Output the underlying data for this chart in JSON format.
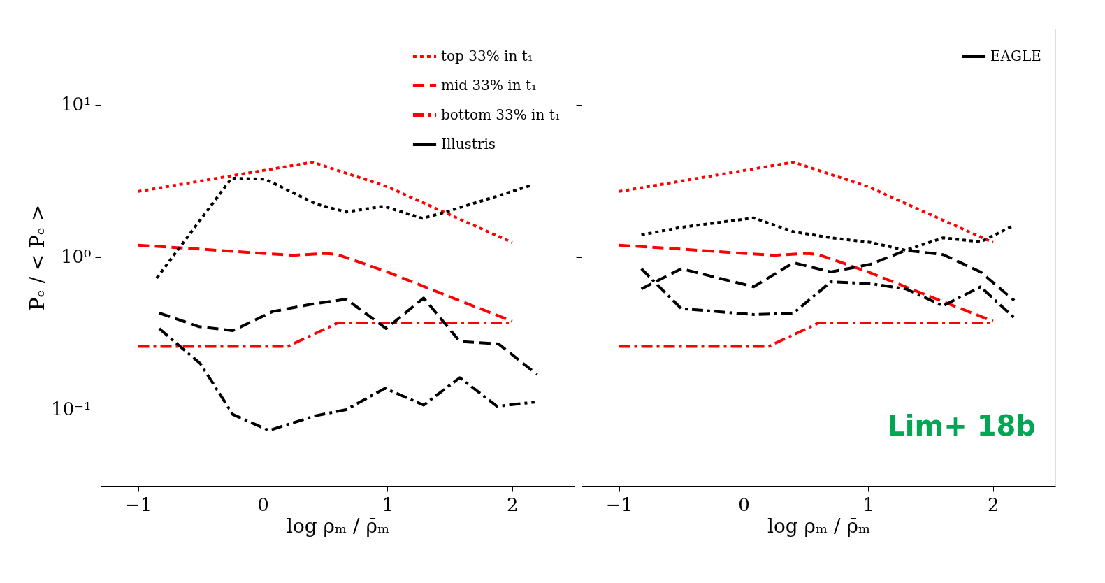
{
  "chart_data": [
    {
      "type": "line",
      "xlabel": "log ρₘ / ρ̄ₘ",
      "ylabel": "Pₑ / < Pₑ >",
      "log": "y",
      "grid": false,
      "legend": "top right",
      "xlim": [
        -1.3,
        2.5
      ],
      "ylim": [
        0.0316,
        31.6
      ],
      "xticks": [
        {
          "value": -1,
          "label": "−1"
        },
        0,
        1,
        2
      ],
      "yticks": [
        {
          "value": 0.1,
          "label": "10⁻¹"
        },
        {
          "value": 1,
          "label": "10⁰"
        },
        {
          "value": 10,
          "label": "10¹"
        }
      ],
      "series": [
        {
          "name": "top 33% in t₁",
          "color": "#ff0000",
          "line_style": "dotted",
          "x": [
            -1,
            0,
            0.4,
            1,
            1.5,
            2
          ],
          "values": [
            2.7,
            3.7,
            4.2,
            2.9,
            1.9,
            1.25
          ]
        },
        {
          "name": "mid 33% in t₁",
          "color": "#ff0000",
          "line_style": "dashed",
          "x": [
            -1,
            -0.5,
            0,
            0.25,
            0.5,
            0.6,
            1,
            1.5,
            2
          ],
          "values": [
            1.2,
            1.13,
            1.06,
            1.03,
            1.06,
            1.04,
            0.8,
            0.55,
            0.38
          ]
        },
        {
          "name": "bottom 33% in t₁",
          "color": "#ff0000",
          "line_style": "dashdot",
          "x": [
            -1,
            -0.5,
            0,
            0.2,
            0.4,
            0.6,
            1,
            2
          ],
          "values": [
            0.26,
            0.26,
            0.26,
            0.26,
            0.31,
            0.37,
            0.37,
            0.37
          ]
        },
        {
          "name": "Illustris",
          "color": "#000000",
          "line_style": "solid"
        },
        {
          "color": "#000000",
          "line_style": "dotted",
          "x": [
            -0.85,
            -0.25,
            0.02,
            0.43,
            0.67,
            0.97,
            1.28,
            1.47,
            2.16
          ],
          "values": [
            0.73,
            3.3,
            3.25,
            2.23,
            1.98,
            2.16,
            1.8,
            1.98,
            2.97
          ]
        },
        {
          "color": "#000000",
          "line_style": "dashed",
          "x": [
            -0.83,
            -0.51,
            -0.24,
            0.08,
            0.38,
            0.67,
            0.99,
            1.29,
            1.58,
            1.89,
            2.2
          ],
          "values": [
            0.43,
            0.35,
            0.33,
            0.44,
            0.49,
            0.53,
            0.34,
            0.54,
            0.28,
            0.27,
            0.17
          ]
        },
        {
          "color": "#000000",
          "line_style": "dashdot",
          "x": [
            -0.83,
            -0.5,
            -0.24,
            0.05,
            0.42,
            0.67,
            0.98,
            1.29,
            1.58,
            1.88,
            2.18
          ],
          "values": [
            0.34,
            0.2,
            0.093,
            0.073,
            0.091,
            0.1,
            0.138,
            0.107,
            0.162,
            0.105,
            0.112
          ]
        }
      ]
    },
    {
      "type": "line",
      "xlabel": "log ρₘ / ρ̄ₘ",
      "log": "y",
      "grid": false,
      "legend": "top right",
      "tick_labels": "x",
      "xlim": [
        -1.3,
        2.5
      ],
      "ylim": [
        0.0316,
        31.6
      ],
      "xticks": [
        {
          "value": -1,
          "label": "−1"
        },
        0,
        1,
        2
      ],
      "yticks": [
        {
          "value": 0.1,
          "label": null
        },
        {
          "value": 1,
          "label": null
        },
        {
          "value": 10,
          "label": null
        }
      ],
      "annotations": [
        "Lim+ 18b"
      ],
      "series": [
        {
          "color": "#ff0000",
          "line_style": "dotted",
          "x": [
            -1,
            0,
            0.4,
            1,
            1.5,
            2
          ],
          "values": [
            2.7,
            3.7,
            4.2,
            2.9,
            1.9,
            1.25
          ]
        },
        {
          "color": "#ff0000",
          "line_style": "dashed",
          "x": [
            -1,
            -0.5,
            0,
            0.25,
            0.5,
            0.6,
            1,
            1.5,
            2
          ],
          "values": [
            1.2,
            1.13,
            1.06,
            1.03,
            1.06,
            1.04,
            0.8,
            0.55,
            0.38
          ]
        },
        {
          "color": "#ff0000",
          "line_style": "dashdot",
          "x": [
            -1,
            -0.5,
            0,
            0.2,
            0.4,
            0.6,
            1,
            2
          ],
          "values": [
            0.26,
            0.26,
            0.26,
            0.26,
            0.31,
            0.37,
            0.37,
            0.37
          ]
        },
        {
          "name": "EAGLE",
          "color": "#000000",
          "line_style": "solid"
        },
        {
          "color": "#000000",
          "line_style": "dotted",
          "x": [
            -0.82,
            -0.5,
            0.08,
            0.4,
            0.7,
            1.02,
            1.3,
            1.6,
            1.9,
            2.17
          ],
          "values": [
            1.4,
            1.57,
            1.81,
            1.47,
            1.34,
            1.25,
            1.11,
            1.34,
            1.26,
            1.62
          ]
        },
        {
          "color": "#000000",
          "line_style": "dashed",
          "x": [
            -0.82,
            -0.5,
            0.08,
            0.4,
            0.7,
            1.02,
            1.3,
            1.6,
            1.9,
            2.17
          ],
          "values": [
            0.62,
            0.84,
            0.64,
            0.92,
            0.8,
            0.9,
            1.11,
            1.04,
            0.8,
            0.52
          ]
        },
        {
          "color": "#000000",
          "line_style": "dashdot",
          "x": [
            -0.82,
            -0.5,
            0.08,
            0.4,
            0.7,
            1.02,
            1.3,
            1.6,
            1.9,
            2.17
          ],
          "values": [
            0.84,
            0.46,
            0.42,
            0.43,
            0.69,
            0.67,
            0.62,
            0.48,
            0.64,
            0.4
          ]
        }
      ]
    }
  ]
}
